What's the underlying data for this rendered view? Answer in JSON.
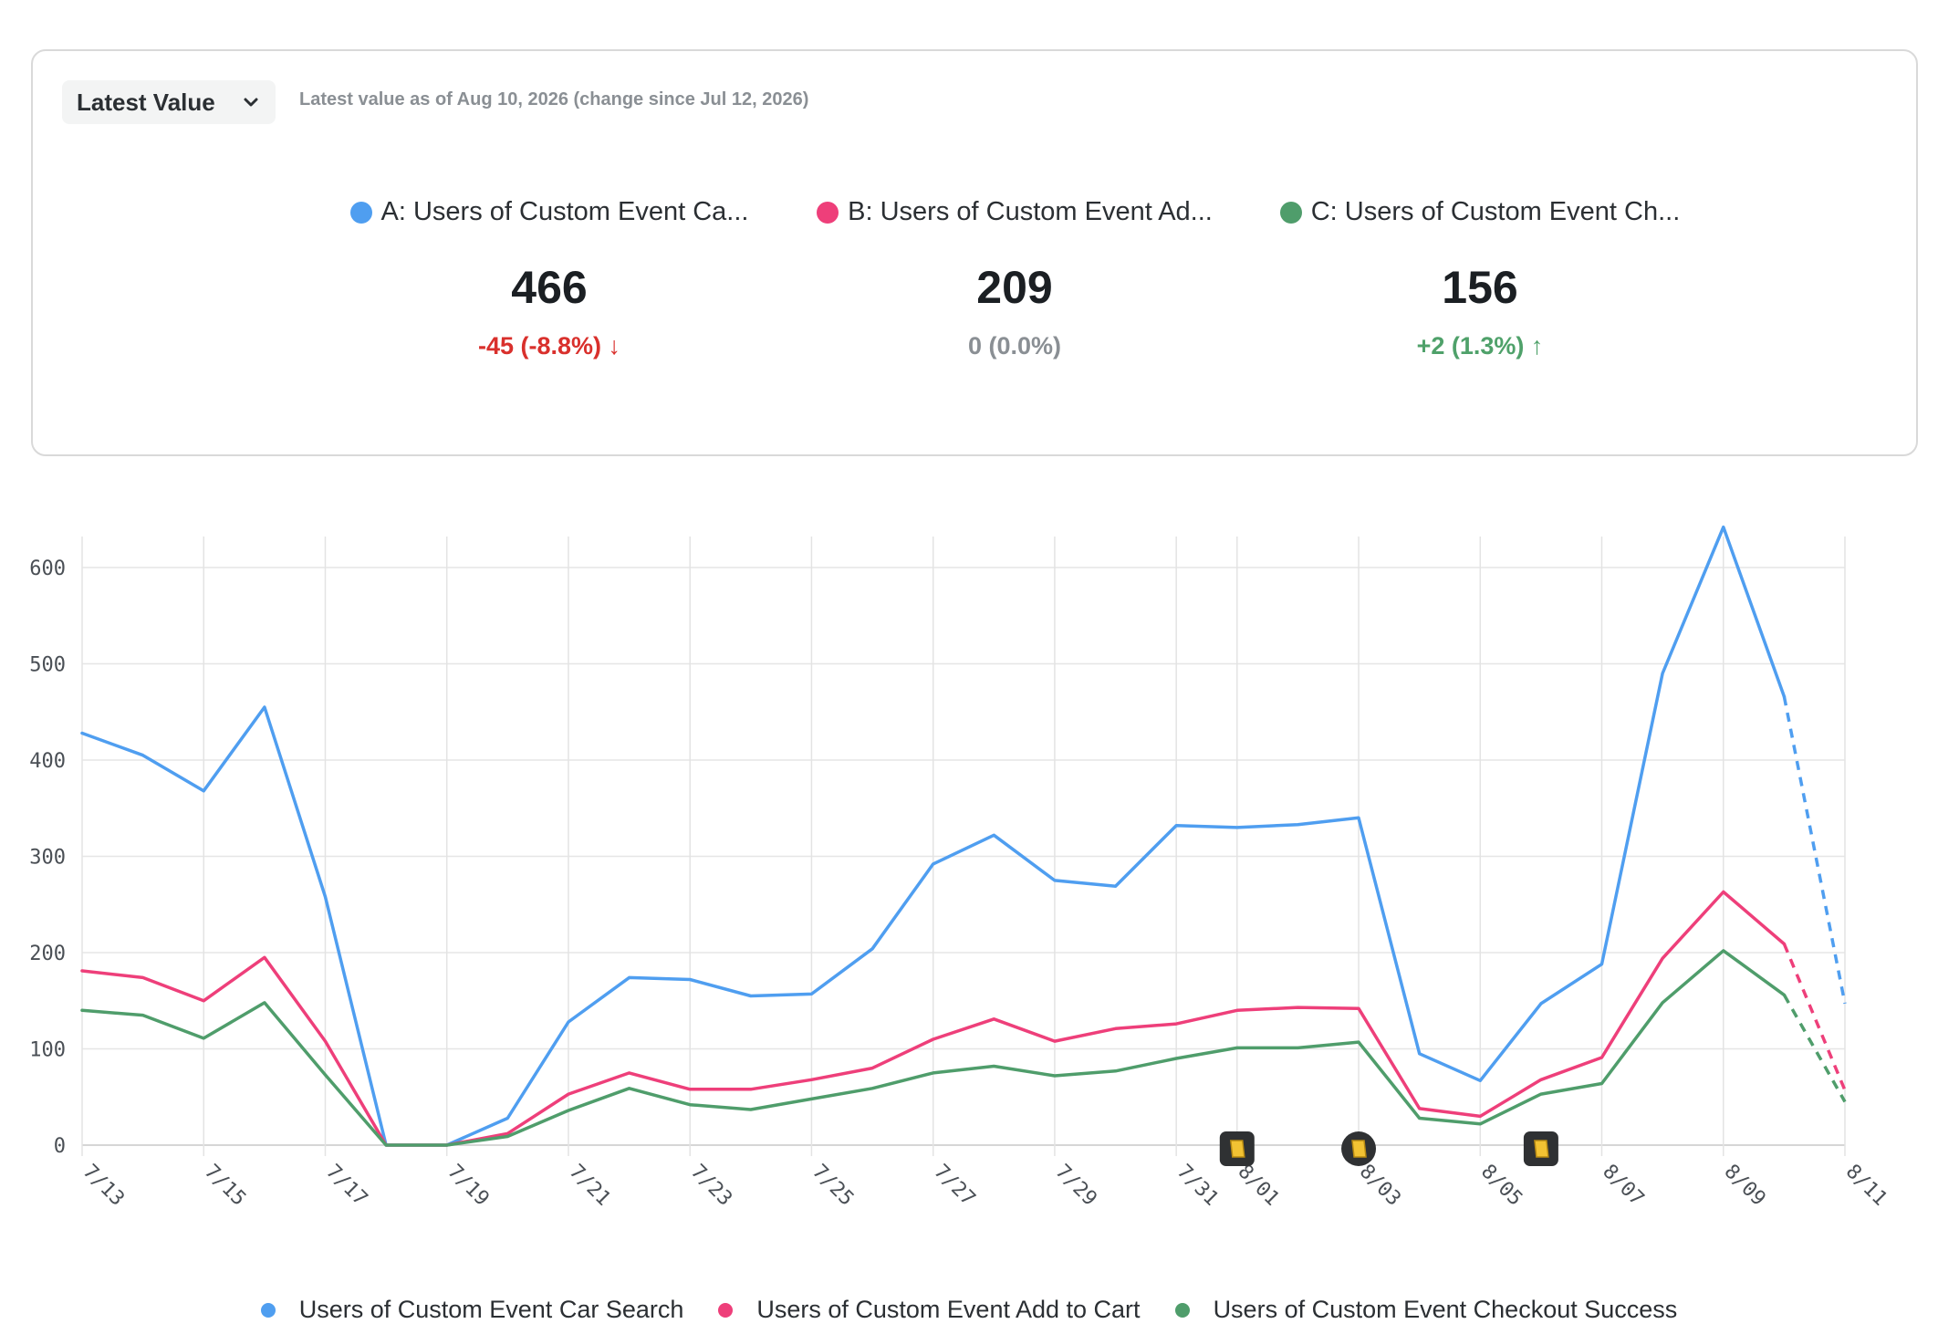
{
  "header": {
    "dropdown_label": "Latest Value",
    "subtitle": "Latest value as of Aug 10, 2026 (change since Jul 12, 2026)"
  },
  "metrics": [
    {
      "name": "A: Users of Custom Event Ca...",
      "value": "466",
      "change": "-45 (-8.8%) ↓",
      "color": "#4f9ef0"
    },
    {
      "name": "B: Users of Custom Event Ad...",
      "value": "209",
      "change": "0 (0.0%)",
      "color": "#ee3f7a"
    },
    {
      "name": "C: Users of Custom Event Ch...",
      "value": "156",
      "change": "+2 (1.3%) ↑",
      "color": "#4f9d6b"
    }
  ],
  "chart_data": {
    "type": "line",
    "x": [
      "7/13",
      "7/14",
      "7/15",
      "7/16",
      "7/17",
      "7/18",
      "7/19",
      "7/20",
      "7/21",
      "7/22",
      "7/23",
      "7/24",
      "7/25",
      "7/26",
      "7/27",
      "7/28",
      "7/29",
      "7/30",
      "7/31",
      "8/01",
      "8/02",
      "8/03",
      "8/04",
      "8/05",
      "8/06",
      "8/07",
      "8/08",
      "8/09",
      "8/10",
      "8/11"
    ],
    "x_tick_labels": [
      "7/13",
      "7/15",
      "7/17",
      "7/19",
      "7/21",
      "7/23",
      "7/25",
      "7/27",
      "7/29",
      "7/31",
      "8/01",
      "8/03",
      "8/05",
      "8/07",
      "8/09",
      "8/11"
    ],
    "y_ticks": [
      "0",
      "100",
      "200",
      "300",
      "400",
      "500",
      "600"
    ],
    "ylim": [
      0,
      640
    ],
    "grid": true,
    "legend_position": "bottom",
    "dashed_from": "8/10",
    "series": [
      {
        "name": "Users of Custom Event Car Search",
        "color": "#4f9ef0",
        "values": [
          428,
          405,
          368,
          455,
          258,
          0,
          0,
          28,
          128,
          174,
          172,
          155,
          157,
          204,
          292,
          322,
          275,
          269,
          332,
          330,
          333,
          340,
          95,
          67,
          147,
          188,
          490,
          642,
          466,
          147
        ]
      },
      {
        "name": "Users of Custom Event Add to Cart",
        "color": "#ee3f7a",
        "values": [
          181,
          174,
          150,
          195,
          108,
          0,
          0,
          12,
          53,
          75,
          58,
          58,
          68,
          80,
          110,
          131,
          108,
          121,
          126,
          140,
          143,
          142,
          38,
          30,
          68,
          91,
          194,
          263,
          209,
          57
        ]
      },
      {
        "name": "Users of Custom Event Checkout Success",
        "color": "#4f9d6b",
        "values": [
          140,
          135,
          111,
          148,
          73,
          0,
          0,
          9,
          36,
          59,
          42,
          37,
          48,
          59,
          75,
          82,
          72,
          77,
          90,
          101,
          101,
          107,
          28,
          22,
          53,
          64,
          148,
          202,
          156,
          45
        ]
      }
    ],
    "annotations": [
      {
        "x": "8/01",
        "icon": "note-icon",
        "shape": "square"
      },
      {
        "x": "8/03",
        "icon": "note-icon",
        "shape": "circle"
      },
      {
        "x": "8/06",
        "icon": "note-icon",
        "shape": "square"
      }
    ]
  }
}
